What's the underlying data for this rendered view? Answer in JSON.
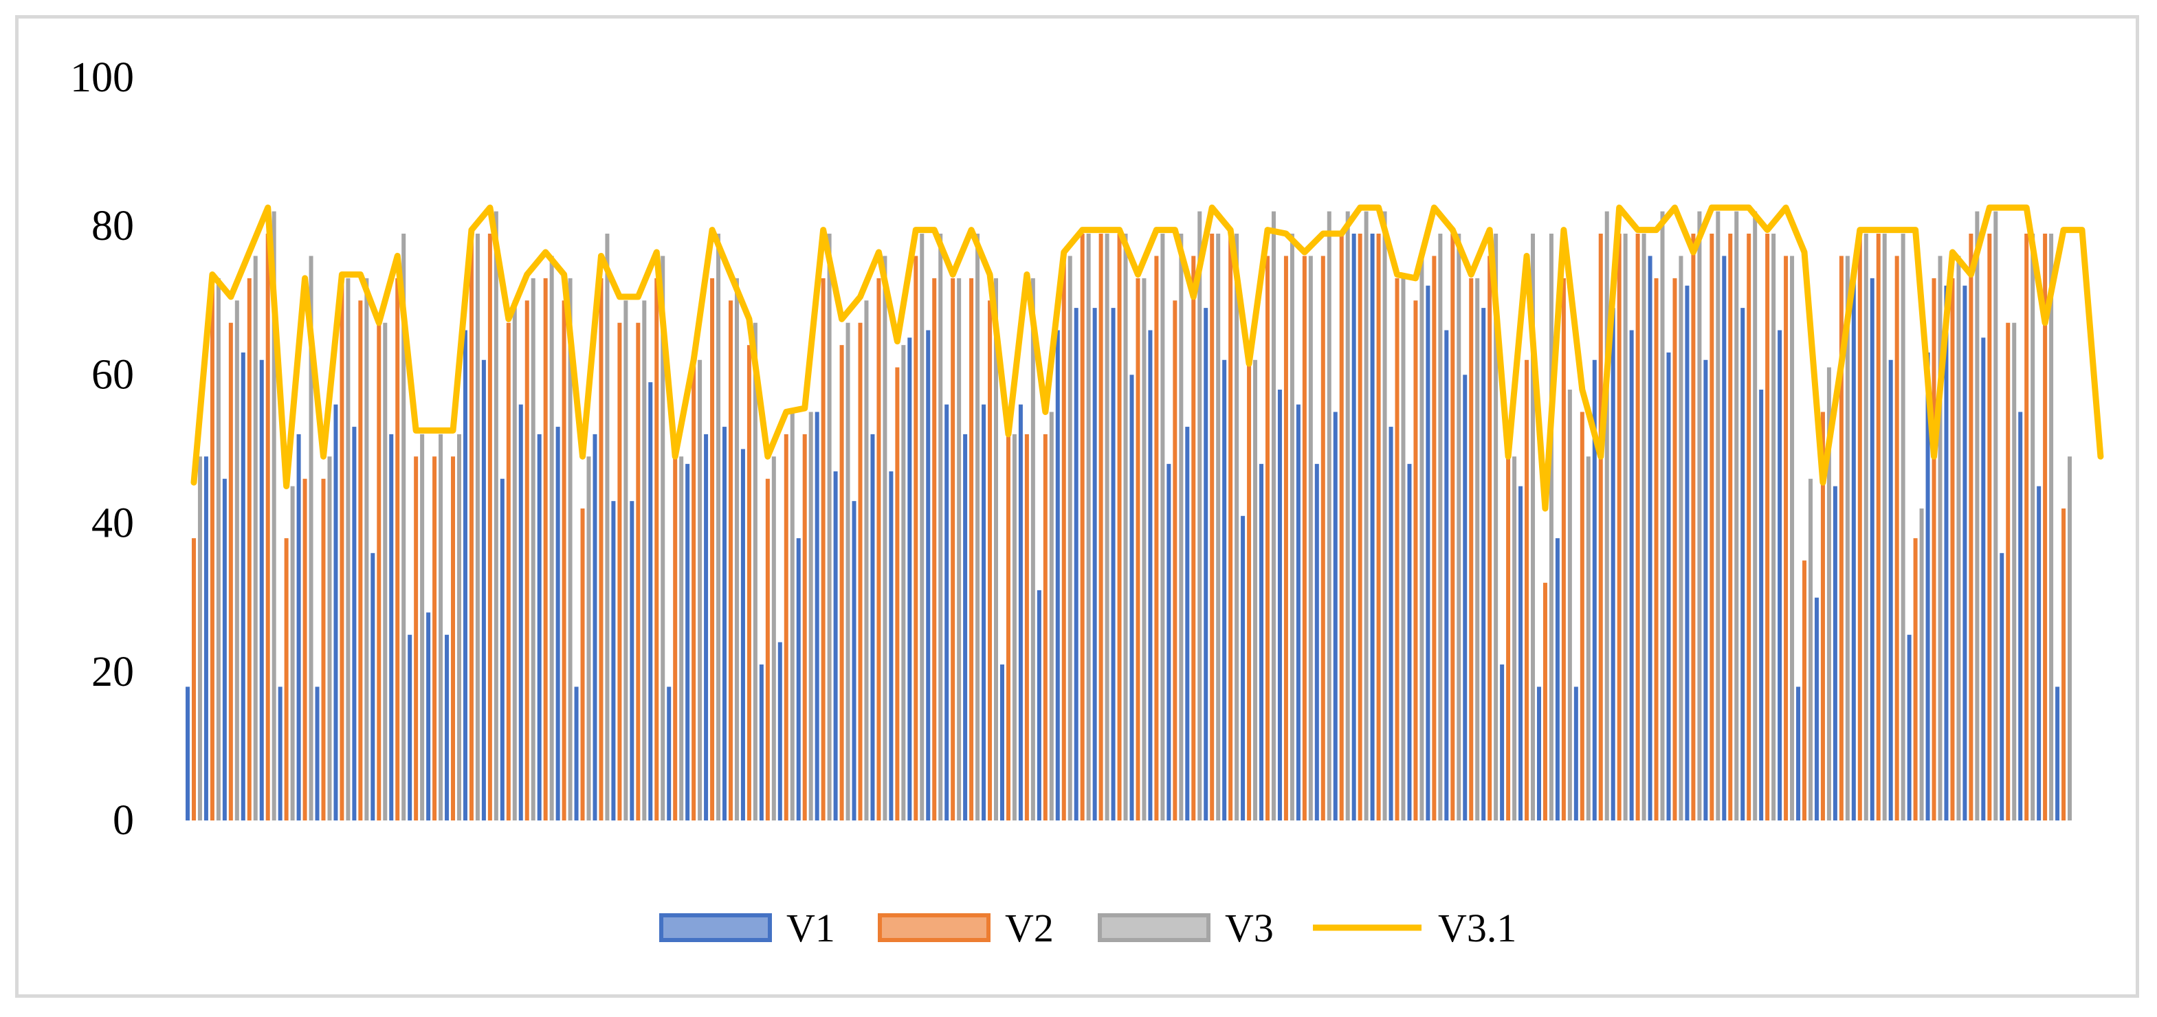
{
  "chart_data": {
    "type": "bar",
    "title": "",
    "xlabel": "",
    "ylabel": "",
    "ylim": [
      0,
      100
    ],
    "yticks": [
      "0",
      "20",
      "40",
      "60",
      "80",
      "100"
    ],
    "grid": false,
    "legend_position": "bottom",
    "series": [
      {
        "name": "V1",
        "kind": "bar",
        "color": "#4472c4",
        "values": [
          18,
          49,
          46,
          63,
          62,
          18,
          52,
          18,
          56,
          53,
          36,
          52,
          25,
          28,
          25,
          66,
          62,
          46,
          56,
          52,
          53,
          18,
          52,
          43,
          43,
          59,
          18,
          48,
          52,
          53,
          50,
          21,
          24,
          38,
          55,
          47,
          43,
          52,
          47,
          65,
          66,
          56,
          52,
          56,
          21,
          56,
          31,
          66,
          69,
          69,
          69,
          60,
          66,
          48,
          53,
          69,
          62,
          41,
          48,
          58,
          56,
          48,
          55,
          79,
          79,
          53,
          48,
          72,
          66,
          60,
          69,
          21,
          45,
          18,
          38,
          18,
          62,
          69,
          66,
          76,
          63,
          72,
          62,
          76,
          69,
          58,
          66,
          18,
          30,
          45,
          73,
          73,
          62,
          25,
          63,
          72,
          72,
          65,
          36,
          55,
          45,
          18
        ]
      },
      {
        "name": "V2",
        "kind": "bar",
        "color": "#ed7d31",
        "values": [
          38,
          73,
          67,
          73,
          79,
          38,
          46,
          46,
          73,
          70,
          67,
          73,
          49,
          49,
          49,
          79,
          79,
          67,
          70,
          73,
          70,
          42,
          73,
          67,
          67,
          73,
          49,
          62,
          73,
          70,
          64,
          46,
          52,
          52,
          73,
          64,
          67,
          73,
          61,
          76,
          73,
          73,
          73,
          70,
          52,
          52,
          52,
          76,
          79,
          79,
          79,
          73,
          76,
          70,
          76,
          79,
          79,
          62,
          76,
          76,
          76,
          76,
          79,
          79,
          79,
          73,
          70,
          76,
          79,
          73,
          76,
          49,
          62,
          32,
          73,
          55,
          79,
          79,
          79,
          73,
          73,
          79,
          79,
          79,
          79,
          79,
          76,
          35,
          55,
          76,
          79,
          79,
          76,
          38,
          73,
          73,
          79,
          79,
          67,
          79,
          79,
          42
        ]
      },
      {
        "name": "V3",
        "kind": "bar",
        "color": "#a5a5a5",
        "values": [
          49,
          73,
          70,
          76,
          82,
          45,
          76,
          49,
          73,
          73,
          67,
          79,
          52,
          52,
          52,
          79,
          82,
          70,
          73,
          76,
          73,
          49,
          79,
          70,
          70,
          76,
          49,
          62,
          79,
          73,
          67,
          49,
          55,
          55,
          79,
          67,
          70,
          76,
          64,
          79,
          79,
          73,
          79,
          73,
          52,
          73,
          55,
          76,
          79,
          79,
          79,
          73,
          79,
          79,
          82,
          79,
          79,
          62,
          82,
          79,
          76,
          82,
          82,
          82,
          82,
          73,
          76,
          79,
          79,
          73,
          79,
          49,
          79,
          79,
          58,
          49,
          82,
          79,
          79,
          82,
          76,
          82,
          82,
          82,
          82,
          79,
          76,
          46,
          61,
          76,
          79,
          79,
          79,
          42,
          76,
          76,
          82,
          82,
          67,
          79,
          79,
          49
        ]
      },
      {
        "name": "V3.1",
        "kind": "line",
        "color": "#ffc000",
        "values": [
          45.5,
          73.5,
          70.5,
          76.5,
          82.5,
          45,
          73,
          49,
          73.5,
          73.5,
          67,
          76,
          52.5,
          52.5,
          52.5,
          79.5,
          82.5,
          67.5,
          73.5,
          76.5,
          73.5,
          49,
          76,
          70.5,
          70.5,
          76.5,
          49,
          62,
          79.5,
          73.5,
          67.5,
          49,
          55,
          55.5,
          79.5,
          67.5,
          70.5,
          76.5,
          64.5,
          79.5,
          79.5,
          73.5,
          79.5,
          73.5,
          52,
          73.5,
          55,
          76.5,
          79.5,
          79.5,
          79.5,
          73.5,
          79.5,
          79.5,
          70.5,
          82.5,
          79.5,
          61.5,
          79.5,
          79,
          76.5,
          79,
          79,
          82.5,
          82.5,
          73.5,
          73,
          82.5,
          79.5,
          73.5,
          79.5,
          49,
          76,
          42,
          79.5,
          58,
          49,
          82.5,
          79.5,
          79.5,
          82.5,
          76.5,
          82.5,
          82.5,
          82.5,
          79.5,
          82.5,
          76.5,
          45.5,
          61.5,
          79.5,
          79.5,
          79.5,
          79.5,
          49,
          76.5,
          73.5,
          82.5,
          82.5,
          82.5,
          67,
          79.5,
          79.5,
          49
        ]
      }
    ]
  }
}
